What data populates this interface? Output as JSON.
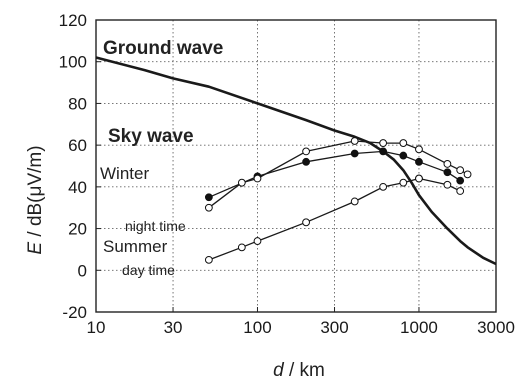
{
  "chart_data": {
    "type": "line",
    "x_scale": "log",
    "xlim": [
      10,
      3000
    ],
    "ylim": [
      -20,
      120
    ],
    "grid": true,
    "xlabel_var": "d",
    "xlabel_unit": " / km",
    "ylabel_var": "E",
    "ylabel_unit": " / dB(μV/m)",
    "x_ticks": [
      10,
      30,
      100,
      300,
      1000,
      3000
    ],
    "x_tick_labels": [
      "10",
      "30",
      "100",
      "300",
      "1000",
      "3000"
    ],
    "y_ticks": [
      -20,
      0,
      20,
      40,
      60,
      80,
      100,
      120
    ],
    "y_tick_labels": [
      "-20",
      "0",
      "20",
      "40",
      "60",
      "80",
      "100",
      "120"
    ],
    "annotations": {
      "ground_wave": "Ground wave",
      "sky_wave": "Sky wave",
      "winter": "Winter",
      "night_time": "night time",
      "summer": "Summer",
      "day_time": "day time"
    },
    "series": [
      {
        "id": "ground",
        "marker": "none",
        "x": [
          10,
          20,
          30,
          50,
          100,
          200,
          300,
          400,
          500,
          600,
          700,
          800,
          900,
          1000,
          1200,
          1500,
          1800,
          2000,
          2500,
          3000
        ],
        "y": [
          102,
          96,
          92,
          88,
          80,
          72,
          67,
          64,
          61,
          57,
          53,
          48,
          42,
          36,
          28,
          20,
          14,
          11,
          6,
          3
        ]
      },
      {
        "id": "winter_filled",
        "marker": "filled",
        "x": [
          50,
          100,
          200,
          400,
          600,
          800,
          1000,
          1500,
          1800
        ],
        "y": [
          35,
          45,
          52,
          56,
          57,
          55,
          52,
          47,
          43
        ]
      },
      {
        "id": "winter_open",
        "marker": "open",
        "x": [
          50,
          80,
          100,
          200,
          400,
          600,
          800,
          1000,
          1500,
          1800,
          2000
        ],
        "y": [
          30,
          42,
          44,
          57,
          62,
          61,
          61,
          58,
          51,
          48,
          46
        ]
      },
      {
        "id": "night_open",
        "marker": "open",
        "x": [
          1000,
          1500,
          1800
        ],
        "y": [
          44,
          41,
          38
        ]
      },
      {
        "id": "summer_open",
        "marker": "open",
        "x": [
          50,
          80,
          100,
          200,
          400,
          600,
          800,
          1000
        ],
        "y": [
          5,
          11,
          14,
          23,
          33,
          40,
          42,
          44
        ]
      }
    ]
  }
}
